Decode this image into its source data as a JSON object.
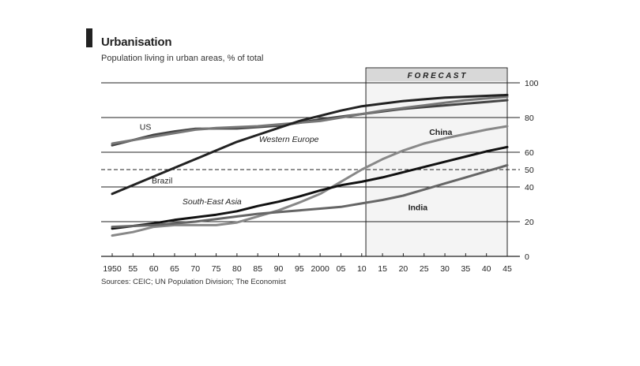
{
  "chart_data": {
    "type": "line",
    "title": "Urbanisation",
    "subtitle": "Population living in urban areas, % of total",
    "source": "Sources: CEIC; UN Population Division; The Economist",
    "forecast_label": "F O R E C A S T",
    "forecast_from": 2011,
    "xlim": [
      1950,
      2045
    ],
    "ylim": [
      0,
      100
    ],
    "x_ticks": [
      1950,
      1955,
      1960,
      1965,
      1970,
      1975,
      1980,
      1985,
      1990,
      1995,
      2000,
      2005,
      2010,
      2015,
      2020,
      2025,
      2030,
      2035,
      2040,
      2045
    ],
    "x_tick_labels": [
      "1950",
      "55",
      "60",
      "65",
      "70",
      "75",
      "80",
      "85",
      "90",
      "95",
      "2000",
      "05",
      "10",
      "15",
      "20",
      "25",
      "30",
      "35",
      "40",
      "45"
    ],
    "y_ticks": [
      0,
      20,
      40,
      50,
      60,
      80,
      100
    ],
    "y_tick_labels": [
      "0",
      "20",
      "40",
      "50",
      "60",
      "80",
      "100"
    ],
    "dashed_reference": 50,
    "grid": true,
    "series": [
      {
        "name": "US",
        "color": "#444444",
        "x": [
          1950,
          1955,
          1960,
          1965,
          1970,
          1975,
          1980,
          1985,
          1990,
          1995,
          2000,
          2005,
          2010,
          2015,
          2020,
          2025,
          2030,
          2035,
          2040,
          2045
        ],
        "values": [
          64,
          67,
          70,
          72,
          73.5,
          73.7,
          73.7,
          74.5,
          75.3,
          77,
          79,
          80.5,
          82,
          83.5,
          85,
          86,
          87,
          88,
          89,
          90
        ]
      },
      {
        "name": "Western Europe",
        "color": "#777777",
        "x": [
          1950,
          1955,
          1960,
          1965,
          1970,
          1975,
          1980,
          1985,
          1990,
          1995,
          2000,
          2005,
          2010,
          2015,
          2020,
          2025,
          2030,
          2035,
          2040,
          2045
        ],
        "values": [
          65,
          67,
          69,
          71,
          73,
          74,
          74.5,
          75,
          76,
          77,
          78,
          80,
          82,
          84,
          85.5,
          87,
          88.5,
          90,
          91,
          92
        ]
      },
      {
        "name": "Brazil",
        "color": "#222222",
        "x": [
          1950,
          1955,
          1960,
          1965,
          1970,
          1975,
          1980,
          1985,
          1990,
          1995,
          2000,
          2005,
          2010,
          2015,
          2020,
          2025,
          2030,
          2035,
          2040,
          2045
        ],
        "values": [
          36,
          41,
          46,
          51,
          56,
          61,
          66,
          70,
          74,
          78,
          81,
          84,
          86.5,
          88,
          89.5,
          90.5,
          91.5,
          92,
          92.5,
          93
        ]
      },
      {
        "name": "China",
        "color": "#888888",
        "x": [
          1950,
          1955,
          1960,
          1965,
          1970,
          1975,
          1980,
          1985,
          1990,
          1995,
          2000,
          2005,
          2010,
          2015,
          2020,
          2025,
          2030,
          2035,
          2040,
          2045
        ],
        "values": [
          12,
          14,
          17,
          18,
          18,
          18,
          19.5,
          23,
          26.5,
          31,
          36,
          43,
          50,
          56,
          61,
          65,
          68,
          70.5,
          73,
          75
        ]
      },
      {
        "name": "South-East Asia",
        "color": "#111111",
        "x": [
          1950,
          1955,
          1960,
          1965,
          1970,
          1975,
          1980,
          1985,
          1990,
          1995,
          2000,
          2005,
          2010,
          2015,
          2020,
          2025,
          2030,
          2035,
          2040,
          2045
        ],
        "values": [
          16,
          17.5,
          19,
          21,
          22.5,
          24,
          26,
          29,
          31.5,
          34.5,
          38,
          41,
          43,
          45.5,
          48.5,
          51.5,
          54.5,
          57.5,
          60.5,
          63
        ]
      },
      {
        "name": "India",
        "color": "#666666",
        "x": [
          1950,
          1955,
          1960,
          1965,
          1970,
          1975,
          1980,
          1985,
          1990,
          1995,
          2000,
          2005,
          2010,
          2015,
          2020,
          2025,
          2030,
          2035,
          2040,
          2045
        ],
        "values": [
          17,
          17.5,
          18,
          19,
          20,
          21.5,
          23,
          24.5,
          25.5,
          26.5,
          27.5,
          28.5,
          30.5,
          32.5,
          35,
          38.5,
          42,
          45.5,
          49,
          52.5
        ]
      }
    ]
  }
}
